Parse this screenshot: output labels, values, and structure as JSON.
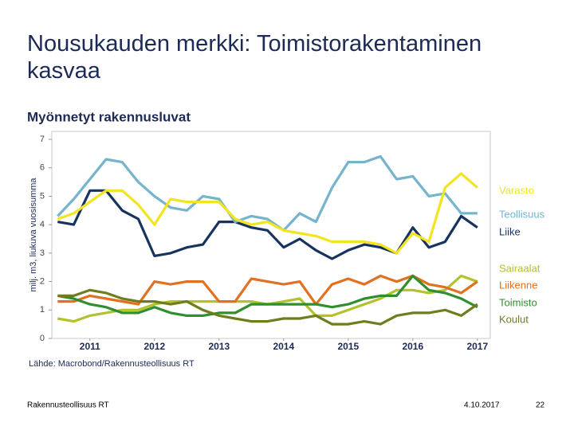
{
  "slide": {
    "title": "Nousukauden merkki: Toimistorakentaminen kasvaa",
    "footer_left": "Rakennusteollisuus RT",
    "date": "4.10.2017",
    "page_number": "22"
  },
  "chart_data": {
    "type": "line",
    "title": "Myönnetyt rakennusluvat",
    "ylabel": "milj. m3, liukuva vuosisumma",
    "source": "Lähde: Macrobond/Rakennusteollisuus RT",
    "x": [
      2011,
      2011.25,
      2011.5,
      2011.75,
      2012,
      2012.25,
      2012.5,
      2012.75,
      2013,
      2013.25,
      2013.5,
      2013.75,
      2014,
      2014.25,
      2014.5,
      2014.75,
      2015,
      2015.25,
      2015.5,
      2015.75,
      2016,
      2016.25,
      2016.5,
      2016.75,
      2017,
      2017.25,
      2017.5
    ],
    "xlim": [
      2010.91,
      2017.7
    ],
    "xticks": [
      {
        "value": 2011.5,
        "label": "2011"
      },
      {
        "value": 2012.5,
        "label": "2012"
      },
      {
        "value": 2013.5,
        "label": "2013"
      },
      {
        "value": 2014.5,
        "label": "2014"
      },
      {
        "value": 2015.5,
        "label": "2015"
      },
      {
        "value": 2016.5,
        "label": "2016"
      },
      {
        "value": 2017.5,
        "label": "2017"
      }
    ],
    "ylim": [
      0,
      7
    ],
    "yticks": [
      0,
      1,
      2,
      3,
      4,
      5,
      6,
      7
    ],
    "series": [
      {
        "name": "Varasto",
        "color": "#f2e41f",
        "values": [
          4.2,
          4.4,
          4.8,
          5.2,
          5.2,
          4.7,
          4.0,
          4.9,
          4.8,
          4.8,
          4.8,
          4.2,
          4.0,
          4.1,
          3.8,
          3.7,
          3.6,
          3.4,
          3.4,
          3.4,
          3.3,
          3.0,
          3.7,
          3.4,
          5.3,
          5.8,
          5.3
        ]
      },
      {
        "name": "Teollisuus",
        "color": "#74b4cc",
        "values": [
          4.3,
          4.9,
          5.6,
          6.3,
          6.2,
          5.5,
          5.0,
          4.6,
          4.5,
          5.0,
          4.9,
          4.1,
          4.3,
          4.2,
          3.8,
          4.4,
          4.1,
          5.3,
          6.2,
          6.2,
          6.4,
          5.6,
          5.7,
          5.0,
          5.1,
          4.4,
          4.4
        ]
      },
      {
        "name": "Liike",
        "color": "#17335e",
        "values": [
          4.1,
          4.0,
          5.2,
          5.2,
          4.5,
          4.2,
          2.9,
          3.0,
          3.2,
          3.3,
          4.1,
          4.1,
          3.9,
          3.8,
          3.2,
          3.5,
          3.1,
          2.8,
          3.1,
          3.3,
          3.2,
          3.0,
          3.9,
          3.2,
          3.4,
          4.3,
          3.9
        ]
      },
      {
        "name": "Sairaalat",
        "color": "#b3c22a",
        "values": [
          0.7,
          0.6,
          0.8,
          0.9,
          1.0,
          1.0,
          1.2,
          1.3,
          1.3,
          1.3,
          1.3,
          1.3,
          1.3,
          1.2,
          1.3,
          1.4,
          0.8,
          0.8,
          1.0,
          1.2,
          1.4,
          1.7,
          1.7,
          1.6,
          1.7,
          2.2,
          2.0
        ]
      },
      {
        "name": "Liikenne",
        "color": "#e2701f",
        "values": [
          1.3,
          1.3,
          1.5,
          1.4,
          1.3,
          1.2,
          2.0,
          1.9,
          2.0,
          2.0,
          1.3,
          1.3,
          2.1,
          2.0,
          1.9,
          2.0,
          1.2,
          1.9,
          2.1,
          1.9,
          2.2,
          2.0,
          2.2,
          1.9,
          1.8,
          1.6,
          2.0
        ]
      },
      {
        "name": "Toimisto",
        "color": "#2f8f2c",
        "values": [
          1.5,
          1.4,
          1.2,
          1.1,
          0.9,
          0.9,
          1.1,
          0.9,
          0.8,
          0.8,
          0.9,
          0.9,
          1.2,
          1.2,
          1.2,
          1.2,
          1.2,
          1.1,
          1.2,
          1.4,
          1.5,
          1.5,
          2.2,
          1.7,
          1.6,
          1.4,
          1.1
        ]
      },
      {
        "name": "Koulut",
        "color": "#6f7d1f",
        "values": [
          1.5,
          1.5,
          1.7,
          1.6,
          1.4,
          1.3,
          1.3,
          1.2,
          1.3,
          1.0,
          0.8,
          0.7,
          0.6,
          0.6,
          0.7,
          0.7,
          0.8,
          0.5,
          0.5,
          0.6,
          0.5,
          0.8,
          0.9,
          0.9,
          1.0,
          0.8,
          1.2
        ]
      }
    ]
  }
}
